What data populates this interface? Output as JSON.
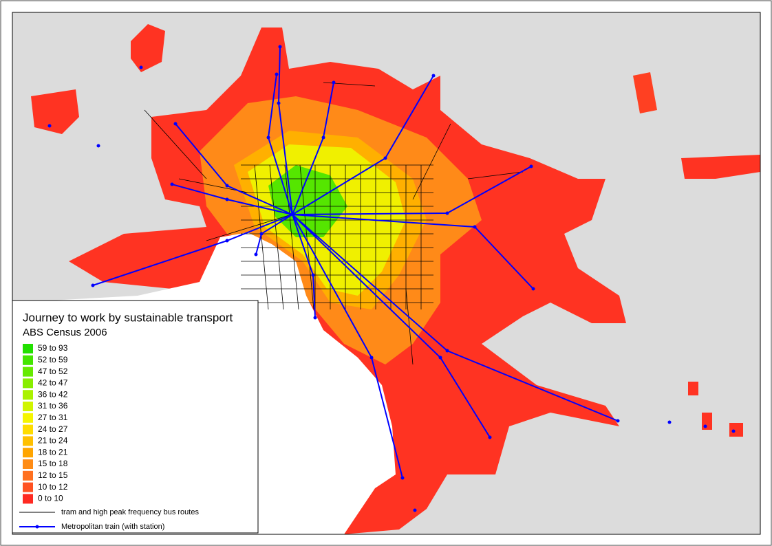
{
  "legend": {
    "title": "Journey to work by sustainable transport",
    "subtitle": "ABS Census 2006",
    "classes": [
      {
        "label": "59 to 93",
        "color": "#22e000"
      },
      {
        "label": "52 to 59",
        "color": "#44e600"
      },
      {
        "label": "47 to 52",
        "color": "#66ea00"
      },
      {
        "label": "42 to 47",
        "color": "#88ee00"
      },
      {
        "label": "36 to 42",
        "color": "#aaf200"
      },
      {
        "label": "31 to 36",
        "color": "#d0f500"
      },
      {
        "label": "27 to 31",
        "color": "#f5f500"
      },
      {
        "label": "24 to 27",
        "color": "#ffdc00"
      },
      {
        "label": "21 to 24",
        "color": "#ffc000"
      },
      {
        "label": "18 to 21",
        "color": "#ffa500"
      },
      {
        "label": "15 to 18",
        "color": "#ff8c15"
      },
      {
        "label": "12 to 15",
        "color": "#ff7020"
      },
      {
        "label": "10 to 12",
        "color": "#ff5222"
      },
      {
        "label": "0 to 10",
        "color": "#ff2a22"
      }
    ],
    "lines": [
      {
        "label": "tram and high peak frequency bus routes",
        "color": "#000000",
        "stations": false
      },
      {
        "label": "Metropolitan train (with station)",
        "color": "#0000ff",
        "stations": true
      }
    ]
  }
}
